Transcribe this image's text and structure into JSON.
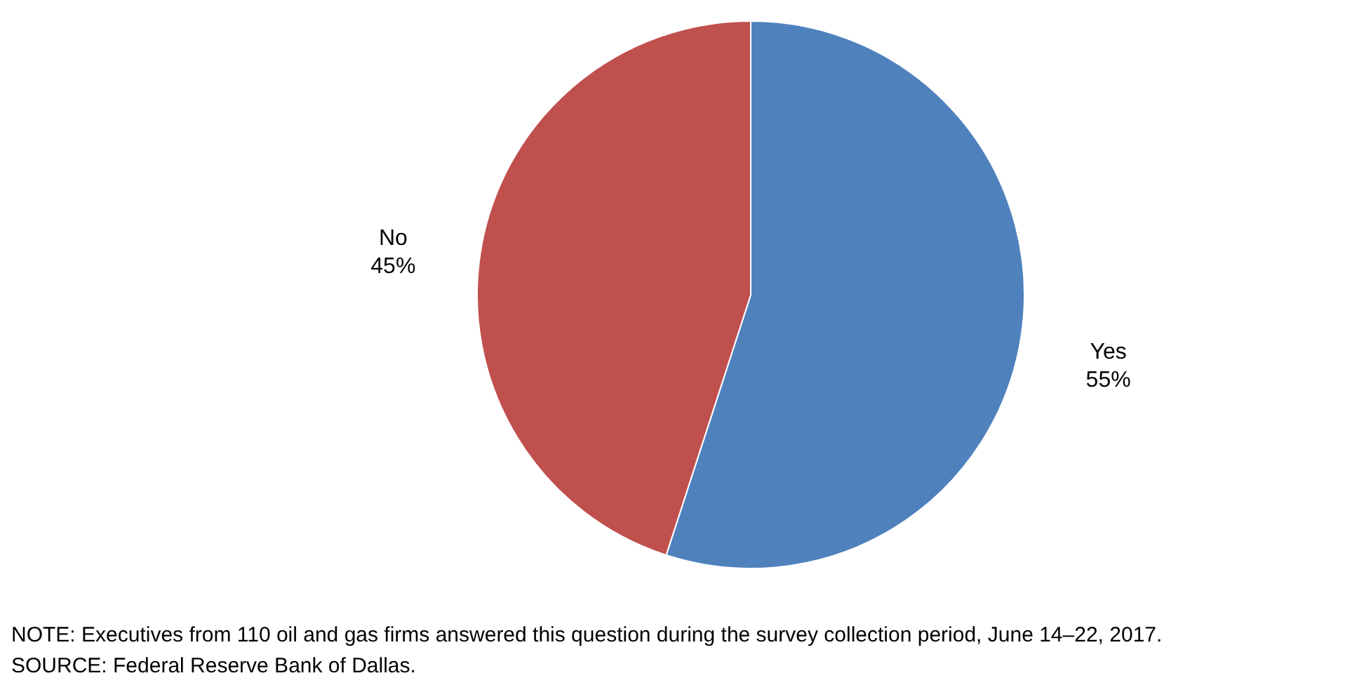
{
  "chart_data": {
    "type": "pie",
    "categories": [
      "Yes",
      "No"
    ],
    "values": [
      55,
      45
    ],
    "colors": [
      "#4f81bd",
      "#c0504d"
    ],
    "value_labels": [
      "55%",
      "45%"
    ],
    "annotations": [
      "NOTE: Executives from 110 oil and gas firms answered this question during the survey collection period, June 14–22, 2017.",
      "SOURCE: Federal Reserve Bank of Dallas."
    ]
  }
}
